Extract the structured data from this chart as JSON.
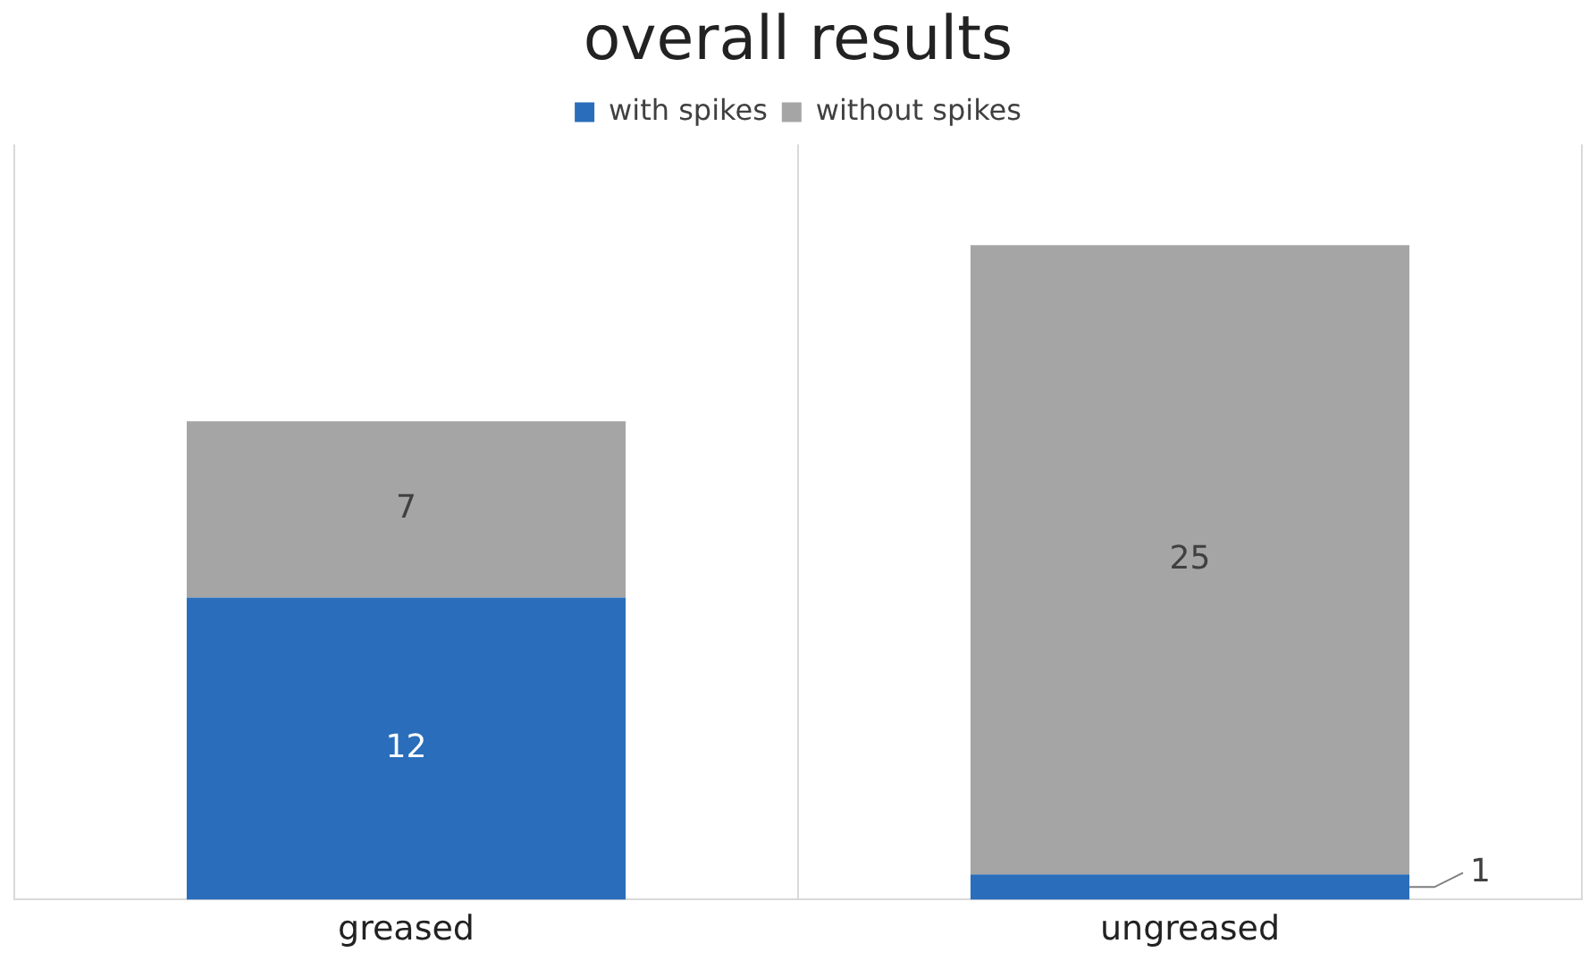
{
  "chart_data": {
    "type": "bar",
    "title": "overall results",
    "categories": [
      "greased",
      "ungreased"
    ],
    "stacked": true,
    "series": [
      {
        "name": "with spikes",
        "color": "#2a6ebb",
        "values": [
          12,
          1
        ]
      },
      {
        "name": "without spikes",
        "color": "#a5a5a5",
        "values": [
          7,
          25
        ]
      }
    ],
    "ylim": [
      0,
      30
    ],
    "data_labels": true,
    "legend": "top",
    "grid": "x"
  }
}
